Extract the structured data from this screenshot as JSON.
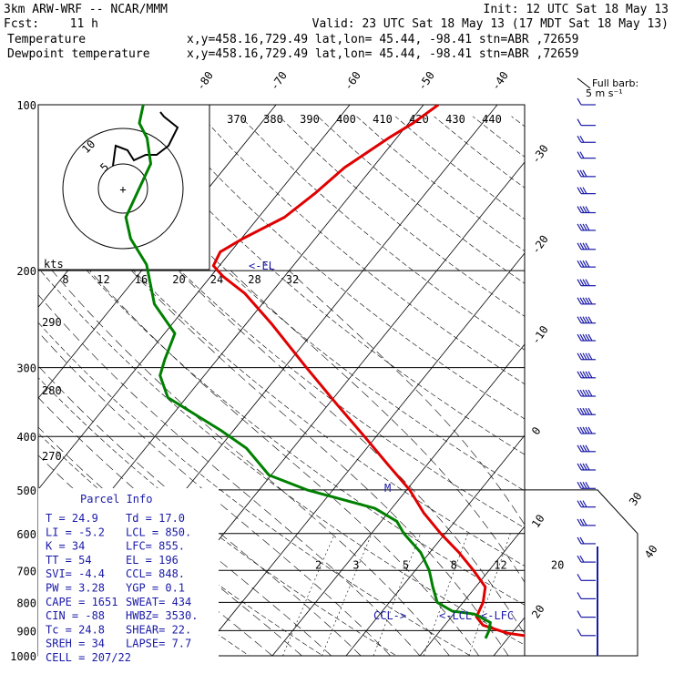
{
  "header": {
    "model": "3km ARW-WRF -- NCAR/MMM",
    "init": "Init: 12 UTC Sat 18 May 13",
    "fcst_label": "Fcst:",
    "fcst_value": "11 h",
    "valid": "Valid: 23 UTC Sat 18 May 13 (17 MDT Sat 18 May 13)",
    "legend": [
      {
        "name": "Temperature",
        "color": "#e00000",
        "info": "x,y=458.16,729.49   lat,lon= 45.44, -98.41   stn=ABR ,72659"
      },
      {
        "name": "Dewpoint temperature",
        "color": "#008000",
        "info": "x,y=458.16,729.49   lat,lon= 45.44, -98.41   stn=ABR ,72659"
      }
    ]
  },
  "wind_legend": {
    "title": "Full barb:",
    "value": "5 m s⁻¹"
  },
  "chart_data": {
    "type": "line",
    "title": "",
    "y_axis": "pressure (hPa, log scale, inverted)",
    "ylim": [
      1000,
      100
    ],
    "pressure_ticks": [
      100,
      200,
      300,
      400,
      500,
      600,
      700,
      800,
      900,
      1000
    ],
    "isotherm_labels": [
      -80,
      -70,
      -60,
      -50,
      -40,
      -30,
      -20,
      -10,
      0,
      10,
      20,
      30,
      40
    ],
    "theta_labels": [
      370,
      380,
      390,
      400,
      410,
      420,
      430,
      440
    ],
    "mixing_ratio_labels": [
      2,
      3,
      5,
      8,
      12,
      20
    ],
    "hodograph_kts_label": "kts",
    "hodograph_speed_ticks": [
      8,
      12,
      16,
      20,
      24,
      28,
      32
    ],
    "height_labels": [
      "290",
      "280",
      "270"
    ],
    "annotations": [
      {
        "text": "<-EL",
        "p": 196
      },
      {
        "text": "<-LCL",
        "p": 850
      },
      {
        "text": "<-LFC",
        "p": 855
      },
      {
        "text": "CCL->",
        "p": 848
      },
      {
        "text": "M",
        "p": 500
      }
    ],
    "series": [
      {
        "name": "Temperature",
        "color": "#e00000",
        "points": [
          [
            930,
            24.9
          ],
          [
            910,
            19.4
          ],
          [
            880,
            15.2
          ],
          [
            850,
            13.4
          ],
          [
            800,
            12.7
          ],
          [
            750,
            11.3
          ],
          [
            700,
            7.9
          ],
          [
            650,
            4.0
          ],
          [
            600,
            -0.6
          ],
          [
            550,
            -5.2
          ],
          [
            500,
            -9.6
          ],
          [
            450,
            -15.3
          ],
          [
            400,
            -21.6
          ],
          [
            350,
            -28.8
          ],
          [
            300,
            -37.0
          ],
          [
            250,
            -46.5
          ],
          [
            220,
            -53.5
          ],
          [
            205,
            -58.3
          ],
          [
            196,
            -60.8
          ],
          [
            185,
            -61.4
          ],
          [
            175,
            -59.8
          ],
          [
            160,
            -56.5
          ],
          [
            145,
            -55.0
          ],
          [
            130,
            -53.8
          ],
          [
            115,
            -51.1
          ],
          [
            108,
            -49.4
          ],
          [
            100,
            -48.0
          ]
        ]
      },
      {
        "name": "Dewpoint temperature",
        "color": "#008000",
        "points": [
          [
            930,
            17.0
          ],
          [
            900,
            16.6
          ],
          [
            870,
            15.9
          ],
          [
            840,
            12.8
          ],
          [
            830,
            9.5
          ],
          [
            800,
            6.5
          ],
          [
            750,
            4.2
          ],
          [
            700,
            1.9
          ],
          [
            650,
            -1.2
          ],
          [
            600,
            -5.6
          ],
          [
            570,
            -7.9
          ],
          [
            540,
            -12.3
          ],
          [
            500,
            -23.5
          ],
          [
            470,
            -30.3
          ],
          [
            420,
            -36.3
          ],
          [
            390,
            -41.7
          ],
          [
            340,
            -52.5
          ],
          [
            310,
            -56.0
          ],
          [
            290,
            -57.1
          ],
          [
            260,
            -58.6
          ],
          [
            230,
            -64.6
          ],
          [
            195,
            -70.0
          ],
          [
            175,
            -75.0
          ],
          [
            160,
            -78.0
          ],
          [
            140,
            -79.5
          ],
          [
            128,
            -80.5
          ],
          [
            115,
            -83.8
          ],
          [
            108,
            -86.5
          ],
          [
            100,
            -88.0
          ]
        ]
      }
    ],
    "winds": [
      {
        "p": 100,
        "half": 1
      },
      {
        "p": 109,
        "half": 1
      },
      {
        "p": 117,
        "half": 2
      },
      {
        "p": 125,
        "half": 2
      },
      {
        "p": 135,
        "half": 3
      },
      {
        "p": 145,
        "half": 3
      },
      {
        "p": 157,
        "half": 4
      },
      {
        "p": 169,
        "half": 4
      },
      {
        "p": 183,
        "half": 4
      },
      {
        "p": 197,
        "half": 4
      },
      {
        "p": 213,
        "half": 4
      },
      {
        "p": 230,
        "half": 5
      },
      {
        "p": 249,
        "half": 5
      },
      {
        "p": 268,
        "half": 5
      },
      {
        "p": 290,
        "half": 5
      },
      {
        "p": 313,
        "half": 5
      },
      {
        "p": 338,
        "half": 5
      },
      {
        "p": 365,
        "half": 5
      },
      {
        "p": 395,
        "half": 5
      },
      {
        "p": 426,
        "half": 4
      },
      {
        "p": 460,
        "half": 4
      },
      {
        "p": 497,
        "half": 4
      },
      {
        "p": 537,
        "half": 3
      },
      {
        "p": 580,
        "half": 3
      },
      {
        "p": 626,
        "half": 2
      },
      {
        "p": 676,
        "half": 2
      },
      {
        "p": 730,
        "half": 1
      },
      {
        "p": 788,
        "half": 1
      },
      {
        "p": 851,
        "half": 1
      },
      {
        "p": 919,
        "half": 1
      }
    ]
  },
  "parcel_info": {
    "title": "Parcel Info",
    "rows": [
      [
        "T  =    24.9",
        "Td =  17.0"
      ],
      [
        "LI =    -5.2",
        "LCL =  850."
      ],
      [
        "K  =      34",
        "LFC= 855."
      ],
      [
        "TT =      54",
        "EL  =  196"
      ],
      [
        "SVI=    -4.4",
        "CCL=  848."
      ],
      [
        "PW =    3.28",
        "YGP =   0.1"
      ],
      [
        "CAPE =  1651",
        "SWEAT=  434"
      ],
      [
        "CIN =    -88",
        "HWBZ= 3530."
      ],
      [
        "Tc =    24.8",
        "SHEAR=  22."
      ],
      [
        "SREH =    34",
        "LAPSE=  7.7"
      ],
      [
        "CELL = 207/22",
        ""
      ]
    ]
  }
}
